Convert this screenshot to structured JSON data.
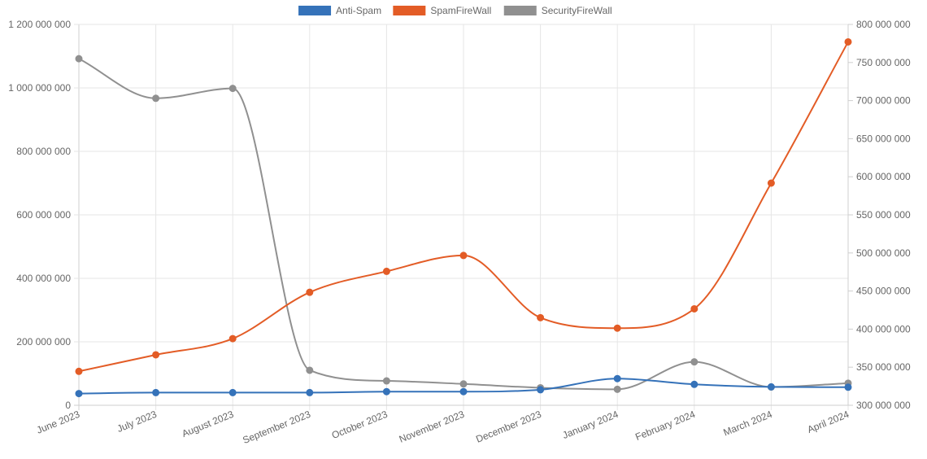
{
  "chart_data": {
    "type": "line",
    "categories": [
      "June 2023",
      "July 2023",
      "August 2023",
      "September 2023",
      "October 2023",
      "November 2023",
      "December 2023",
      "January 2024",
      "February 2024",
      "March 2024",
      "April 2024"
    ],
    "series": [
      {
        "name": "Anti-Spam",
        "color": "#3572b9",
        "axis": "left",
        "values": [
          37000000,
          40000000,
          40000000,
          40000000,
          43000000,
          43000000,
          49000000,
          84000000,
          66000000,
          58000000,
          57000000
        ]
      },
      {
        "name": "SpamFireWall",
        "color": "#e35c26",
        "axis": "left",
        "values": [
          107000000,
          159000000,
          210000000,
          356000000,
          422000000,
          472000000,
          276000000,
          243000000,
          304000000,
          700000000,
          1145000000
        ]
      },
      {
        "name": "SecurityFireWall",
        "color": "#909090",
        "axis": "right",
        "values": [
          755000000,
          703000000,
          716000000,
          346000000,
          332000000,
          328000000,
          323000000,
          321000000,
          357000000,
          324000000,
          329000000
        ]
      }
    ],
    "y_left": {
      "min": 0,
      "max": 1200000000,
      "ticks": [
        "1 200 000 000",
        "1 000 000 000",
        "800 000 000",
        "600 000 000",
        "400 000 000",
        "200 000 000",
        "0"
      ]
    },
    "y_right": {
      "min": 300000000,
      "max": 800000000,
      "ticks": [
        "800 000 000",
        "750 000 000",
        "700 000 000",
        "650 000 000",
        "600 000 000",
        "550 000 000",
        "500 000 000",
        "450 000 000",
        "400 000 000",
        "350 000 000",
        "300 000 000"
      ]
    },
    "grid": true,
    "legend_position": "top-center"
  }
}
